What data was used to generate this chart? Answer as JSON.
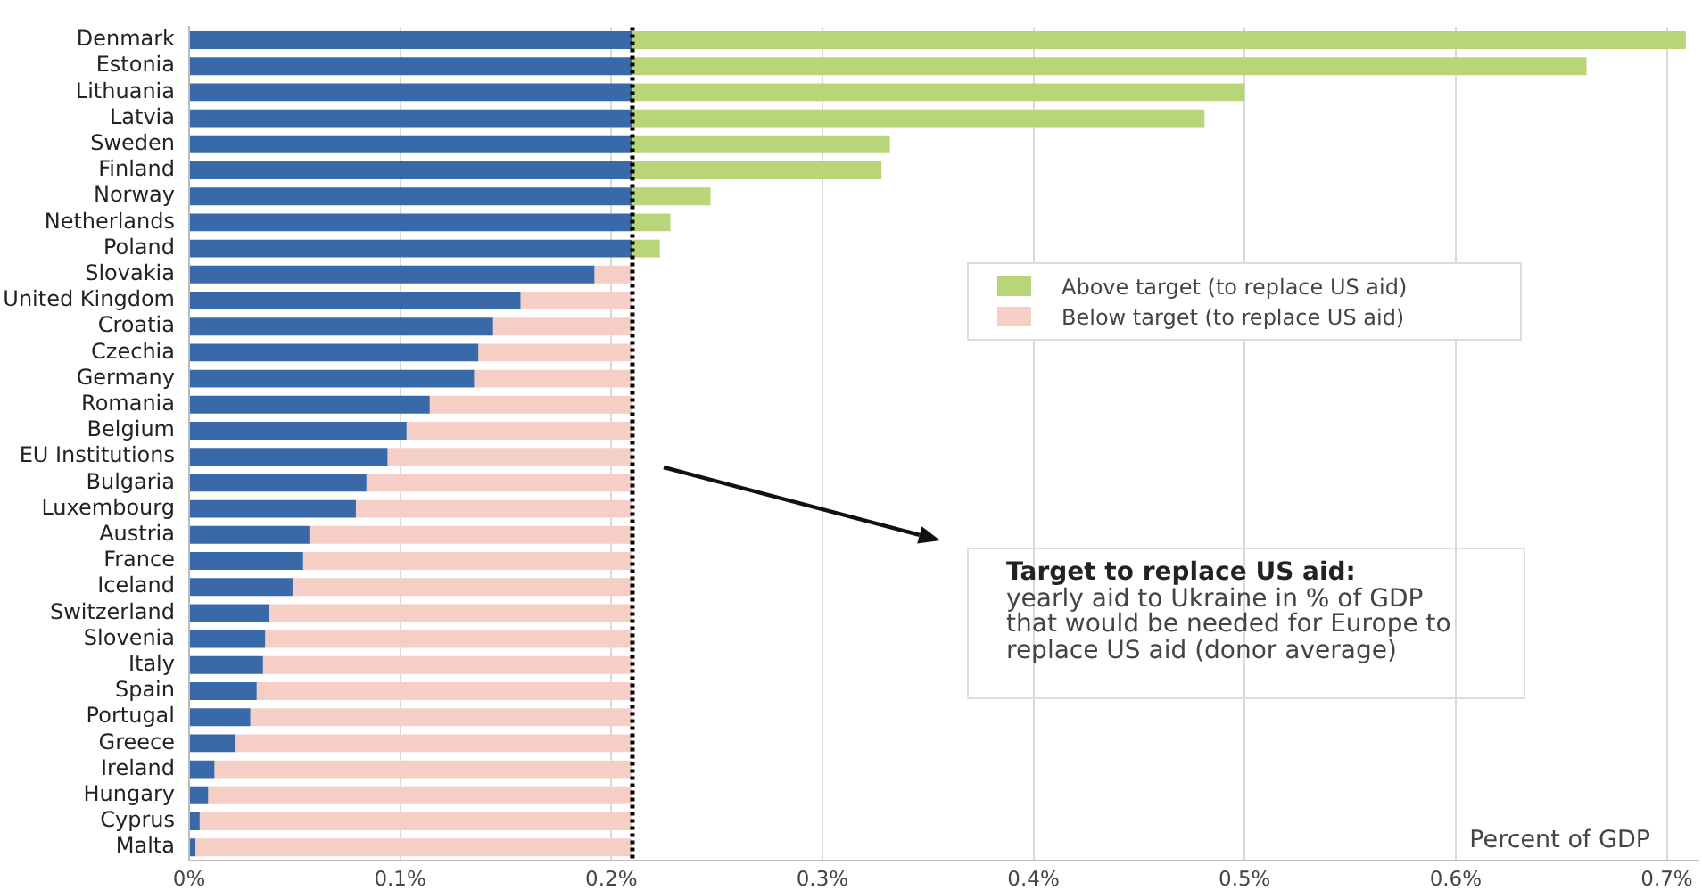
{
  "chart_data": {
    "type": "bar",
    "orientation": "horizontal",
    "stacked": true,
    "categories": [
      "Denmark",
      "Estonia",
      "Lithuania",
      "Latvia",
      "Sweden",
      "Finland",
      "Norway",
      "Netherlands",
      "Poland",
      "Slovakia",
      "United Kingdom",
      "Croatia",
      "Czechia",
      "Germany",
      "Romania",
      "Belgium",
      "EU Institutions",
      "Bulgaria",
      "Luxembourg",
      "Austria",
      "France",
      "Iceland",
      "Switzerland",
      "Slovenia",
      "Italy",
      "Spain",
      "Portugal",
      "Greece",
      "Ireland",
      "Hungary",
      "Cyprus",
      "Malta"
    ],
    "series": [
      {
        "color": "#3a69a9",
        "values": [
          0.21,
          0.21,
          0.21,
          0.21,
          0.21,
          0.21,
          0.21,
          0.21,
          0.21,
          0.192,
          0.157,
          0.144,
          0.137,
          0.135,
          0.114,
          0.103,
          0.094,
          0.084,
          0.079,
          0.057,
          0.054,
          0.049,
          0.038,
          0.036,
          0.035,
          0.032,
          0.029,
          0.022,
          0.012,
          0.009,
          0.005,
          0.003
        ]
      },
      {
        "name": "Above target (to replace US aid)",
        "color": "#b8d57a",
        "values": [
          0.499,
          0.452,
          0.29,
          0.271,
          0.122,
          0.118,
          0.037,
          0.018,
          0.013,
          null,
          null,
          null,
          null,
          null,
          null,
          null,
          null,
          null,
          null,
          null,
          null,
          null,
          null,
          null,
          null,
          null,
          null,
          null,
          null,
          null,
          null,
          null
        ]
      },
      {
        "name": "Below target (to replace US aid)",
        "color": "#f5cec6",
        "values": [
          null,
          null,
          null,
          null,
          null,
          null,
          null,
          null,
          null,
          0.018,
          0.053,
          0.066,
          0.073,
          0.075,
          0.096,
          0.107,
          0.116,
          0.126,
          0.131,
          0.153,
          0.156,
          0.161,
          0.172,
          0.174,
          0.175,
          0.178,
          0.181,
          0.188,
          0.198,
          0.201,
          0.205,
          0.207
        ]
      }
    ],
    "xlim": [
      0,
      0.715
    ],
    "xticks": [
      {
        "value": 0,
        "label": "0%"
      },
      {
        "value": 0.1,
        "label": "0.1%"
      },
      {
        "value": 0.2,
        "label": "0.2%"
      },
      {
        "value": 0.3,
        "label": "0.3%"
      },
      {
        "value": 0.4,
        "label": "0.4%"
      },
      {
        "value": 0.5,
        "label": "0.5%"
      },
      {
        "value": 0.6,
        "label": "0.6%"
      },
      {
        "value": 0.7,
        "label": "0.7%"
      }
    ],
    "xlabel": "Percent of GDP",
    "grid": "x",
    "legend": "right",
    "ref_lines": [
      {
        "axis": "x",
        "value": 0.21,
        "color": "#000000",
        "line_style": "dotted"
      }
    ],
    "annotations": [
      "Target to replace US aid:",
      "yearly aid to Ukraine in % of GDP that would be needed for Europe to replace US aid (donor average)"
    ]
  }
}
